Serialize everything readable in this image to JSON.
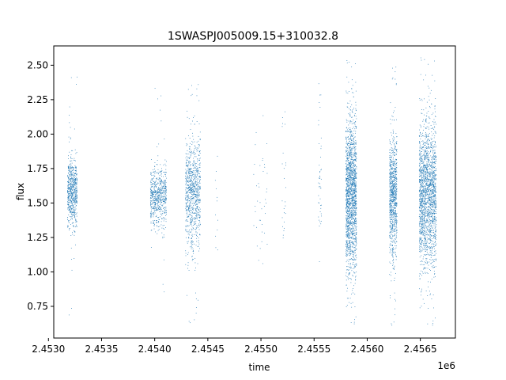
{
  "chart_data": {
    "type": "scatter",
    "title": "1SWASPJ005009.15+310032.8",
    "xlabel": "time",
    "ylabel": "flux",
    "x_offset_label": "1e6",
    "xlim": [
      2.45305,
      2.45683
    ],
    "ylim": [
      0.52,
      2.64
    ],
    "x_ticks": [
      2.453,
      2.4535,
      2.454,
      2.4545,
      2.455,
      2.4555,
      2.456,
      2.4565
    ],
    "x_tick_labels": [
      "2.4530",
      "2.4535",
      "2.4540",
      "2.4545",
      "2.4550",
      "2.4555",
      "2.4560",
      "2.4565"
    ],
    "y_ticks": [
      0.75,
      1.0,
      1.25,
      1.5,
      1.75,
      2.0,
      2.25,
      2.5
    ],
    "y_tick_labels": [
      "0.75",
      "1.00",
      "1.25",
      "1.50",
      "1.75",
      "2.00",
      "2.25",
      "2.50"
    ],
    "grid": false,
    "marker_color": "#1f77b4",
    "series": [
      {
        "clusters": [
          {
            "x_range": [
              2.45318,
              2.45327
            ],
            "center": 1.58,
            "spread": 0.12,
            "min": 0.62,
            "max": 2.49,
            "count": 650
          },
          {
            "x_range": [
              2.45396,
              2.45411
            ],
            "center": 1.54,
            "spread": 0.11,
            "min": 0.85,
            "max": 2.41,
            "count": 650
          },
          {
            "x_range": [
              2.45429,
              2.45443
            ],
            "center": 1.57,
            "spread": 0.2,
            "min": 0.61,
            "max": 2.4,
            "count": 900
          },
          {
            "x_range": [
              2.45457,
              2.4546
            ],
            "center": 1.45,
            "spread": 0.25,
            "min": 0.7,
            "max": 2.03,
            "count": 12
          },
          {
            "x_range": [
              2.45493,
              2.45506
            ],
            "center": 1.5,
            "spread": 0.25,
            "min": 1.05,
            "max": 2.38,
            "count": 40
          },
          {
            "x_range": [
              2.4552,
              2.45524
            ],
            "center": 1.6,
            "spread": 0.3,
            "min": 1.2,
            "max": 2.32,
            "count": 25
          },
          {
            "x_range": [
              2.45554,
              2.45557
            ],
            "center": 1.65,
            "spread": 0.3,
            "min": 1.05,
            "max": 2.41,
            "count": 45
          },
          {
            "x_range": [
              2.4558,
              2.4559
            ],
            "center": 1.55,
            "spread": 0.28,
            "min": 0.6,
            "max": 2.54,
            "count": 1700
          },
          {
            "x_range": [
              2.45621,
              2.45628
            ],
            "center": 1.55,
            "spread": 0.22,
            "min": 0.59,
            "max": 2.53,
            "count": 900
          },
          {
            "x_range": [
              2.45649,
              2.45665
            ],
            "center": 1.55,
            "spread": 0.26,
            "min": 0.59,
            "max": 2.56,
            "count": 1900
          }
        ]
      }
    ]
  }
}
